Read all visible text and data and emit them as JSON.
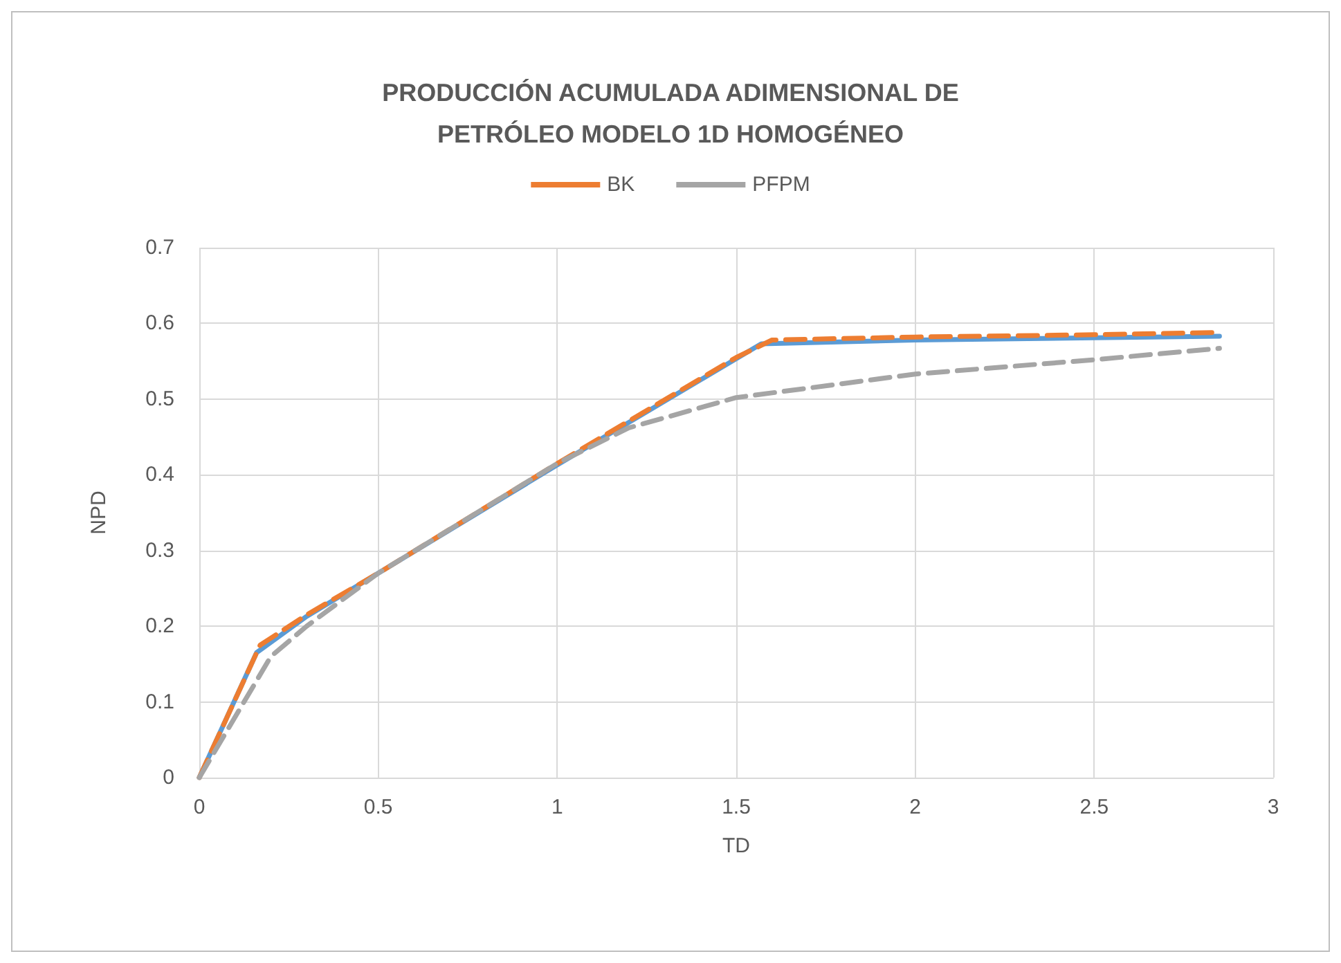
{
  "chart_data": {
    "type": "line",
    "title": "PRODUCCIÓN ACUMULADA ADIMENSIONAL DE\nPETRÓLEO MODELO 1D HOMOGÉNEO",
    "xlabel": "TD",
    "ylabel": "NPD",
    "series": [
      {
        "color": "#5b9bd5",
        "line_style": "solid",
        "x": [
          0,
          0.16,
          0.3,
          0.5,
          1,
          1.57,
          2,
          2.5,
          2.85
        ],
        "values": [
          0,
          0.165,
          0.213,
          0.27,
          0.413,
          0.573,
          0.578,
          0.581,
          0.583
        ]
      },
      {
        "name": "BK",
        "color": "#ed7d31",
        "line_style": "dashed",
        "x": [
          0,
          0.17,
          0.3,
          0.5,
          1,
          1.5,
          1.6,
          2,
          2.5,
          2.85
        ],
        "values": [
          0,
          0.175,
          0.215,
          0.27,
          0.415,
          0.555,
          0.578,
          0.582,
          0.585,
          0.588
        ]
      },
      {
        "name": "PFPM",
        "color": "#a5a5a5",
        "line_style": "dashed",
        "x": [
          0,
          0.2,
          0.3,
          0.5,
          1,
          1.2,
          1.5,
          2,
          2.5,
          2.85
        ],
        "values": [
          0,
          0.16,
          0.2,
          0.27,
          0.415,
          0.462,
          0.502,
          0.533,
          0.552,
          0.567
        ]
      }
    ],
    "xlim": [
      0,
      3
    ],
    "xticks": [
      0,
      0.5,
      1,
      1.5,
      2,
      2.5,
      3
    ],
    "ylim": [
      0,
      0.7
    ],
    "yticks": [
      0,
      0.1,
      0.2,
      0.3,
      0.4,
      0.5,
      0.6,
      0.7
    ],
    "grid": true,
    "legend": "top",
    "marker": "none"
  }
}
